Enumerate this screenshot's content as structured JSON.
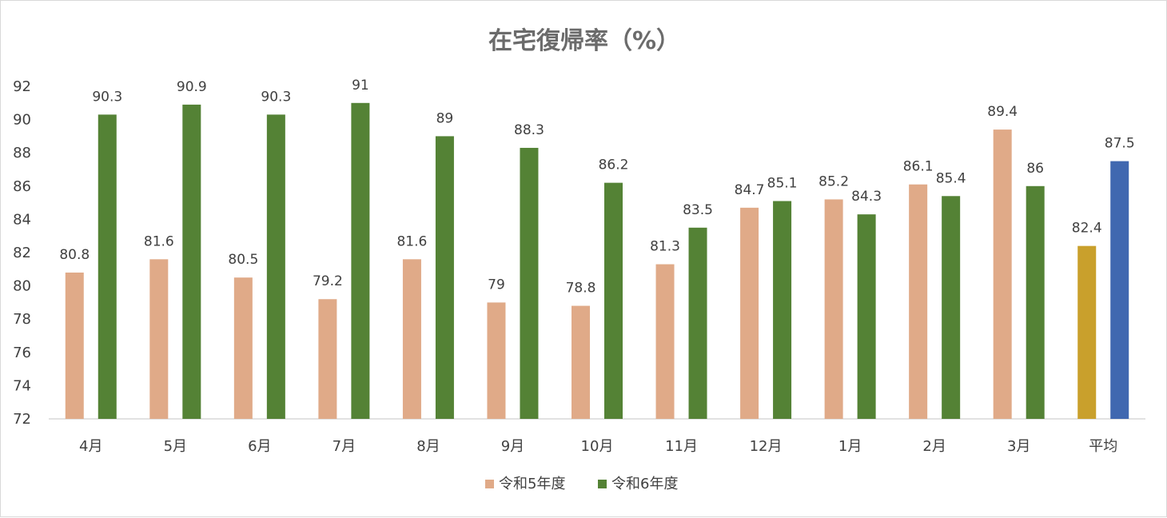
{
  "chart_data": {
    "type": "bar",
    "title": "在宅復帰率（%）",
    "xlabel": "",
    "ylabel": "",
    "ylim": [
      72,
      92
    ],
    "yticks": [
      72,
      74,
      76,
      78,
      80,
      82,
      84,
      86,
      88,
      90,
      92
    ],
    "categories": [
      "4月",
      "5月",
      "6月",
      "7月",
      "8月",
      "9月",
      "10月",
      "11月",
      "12月",
      "1月",
      "2月",
      "3月",
      "平均"
    ],
    "series": [
      {
        "name": "令和5年度",
        "color": "#e0aa88",
        "average_color": "#c9a02c",
        "values": [
          80.8,
          81.6,
          80.5,
          79.2,
          81.6,
          79,
          78.8,
          81.3,
          84.7,
          85.2,
          86.1,
          89.4,
          82.4
        ]
      },
      {
        "name": "令和6年度",
        "color": "#548235",
        "average_color": "#4068b0",
        "values": [
          90.3,
          90.9,
          90.3,
          91,
          89,
          88.3,
          86.2,
          83.5,
          85.1,
          84.3,
          85.4,
          86,
          87.5
        ]
      }
    ],
    "legend_position": "bottom",
    "grid": false,
    "data_labels": true
  }
}
